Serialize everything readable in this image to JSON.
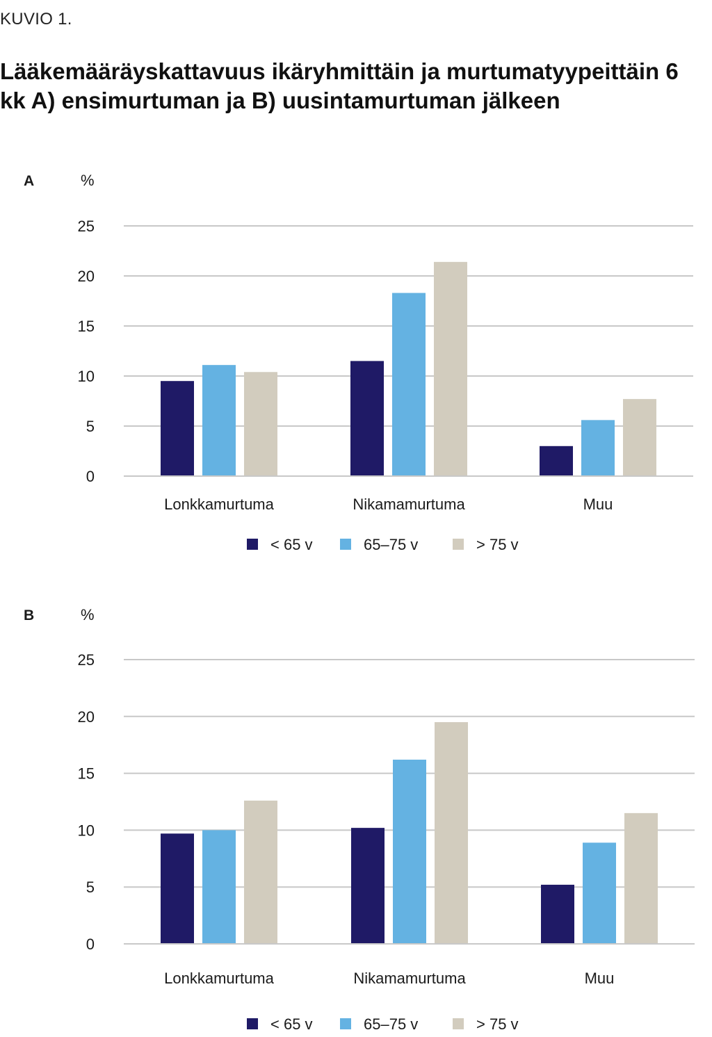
{
  "header": {
    "kicker": "KUVIO 1.",
    "title": "Lääkemääräyskattavuus ikäryhmittäin ja murtumatyypeittäin 6 kk A) ensimurtuman ja B) uusintamurtuman jälkeen"
  },
  "colors": {
    "series_lt65": "#1f1a66",
    "series_65_75": "#64b2e2",
    "series_gt75": "#d2ccbe",
    "grid": "#c8c8c8"
  },
  "chart_data": [
    {
      "type": "bar",
      "panel_label": "A",
      "ylabel": "%",
      "ylim": [
        0,
        25
      ],
      "yticks": [
        "0",
        "5",
        "10",
        "15",
        "20",
        "25"
      ],
      "grid": true,
      "legend_position": "bottom",
      "categories": [
        "Lonkkamurtuma",
        "Nikamamurtuma",
        "Muu"
      ],
      "series": [
        {
          "name": "< 65 v",
          "values": [
            9.5,
            11.5,
            3.0
          ]
        },
        {
          "name": "65–75 v",
          "values": [
            11.1,
            18.3,
            5.6
          ]
        },
        {
          "name": "> 75 v",
          "values": [
            10.4,
            21.4,
            7.7
          ]
        }
      ]
    },
    {
      "type": "bar",
      "panel_label": "B",
      "ylabel": "%",
      "ylim": [
        0,
        25
      ],
      "yticks": [
        "0",
        "5",
        "10",
        "15",
        "20",
        "25"
      ],
      "grid": true,
      "legend_position": "bottom",
      "categories": [
        "Lonkkamurtuma",
        "Nikamamurtuma",
        "Muu"
      ],
      "series": [
        {
          "name": "< 65 v",
          "values": [
            9.7,
            10.2,
            5.2
          ]
        },
        {
          "name": "65–75 v",
          "values": [
            10.0,
            16.2,
            8.9
          ]
        },
        {
          "name": "> 75 v",
          "values": [
            12.6,
            19.5,
            11.5
          ]
        }
      ]
    }
  ]
}
